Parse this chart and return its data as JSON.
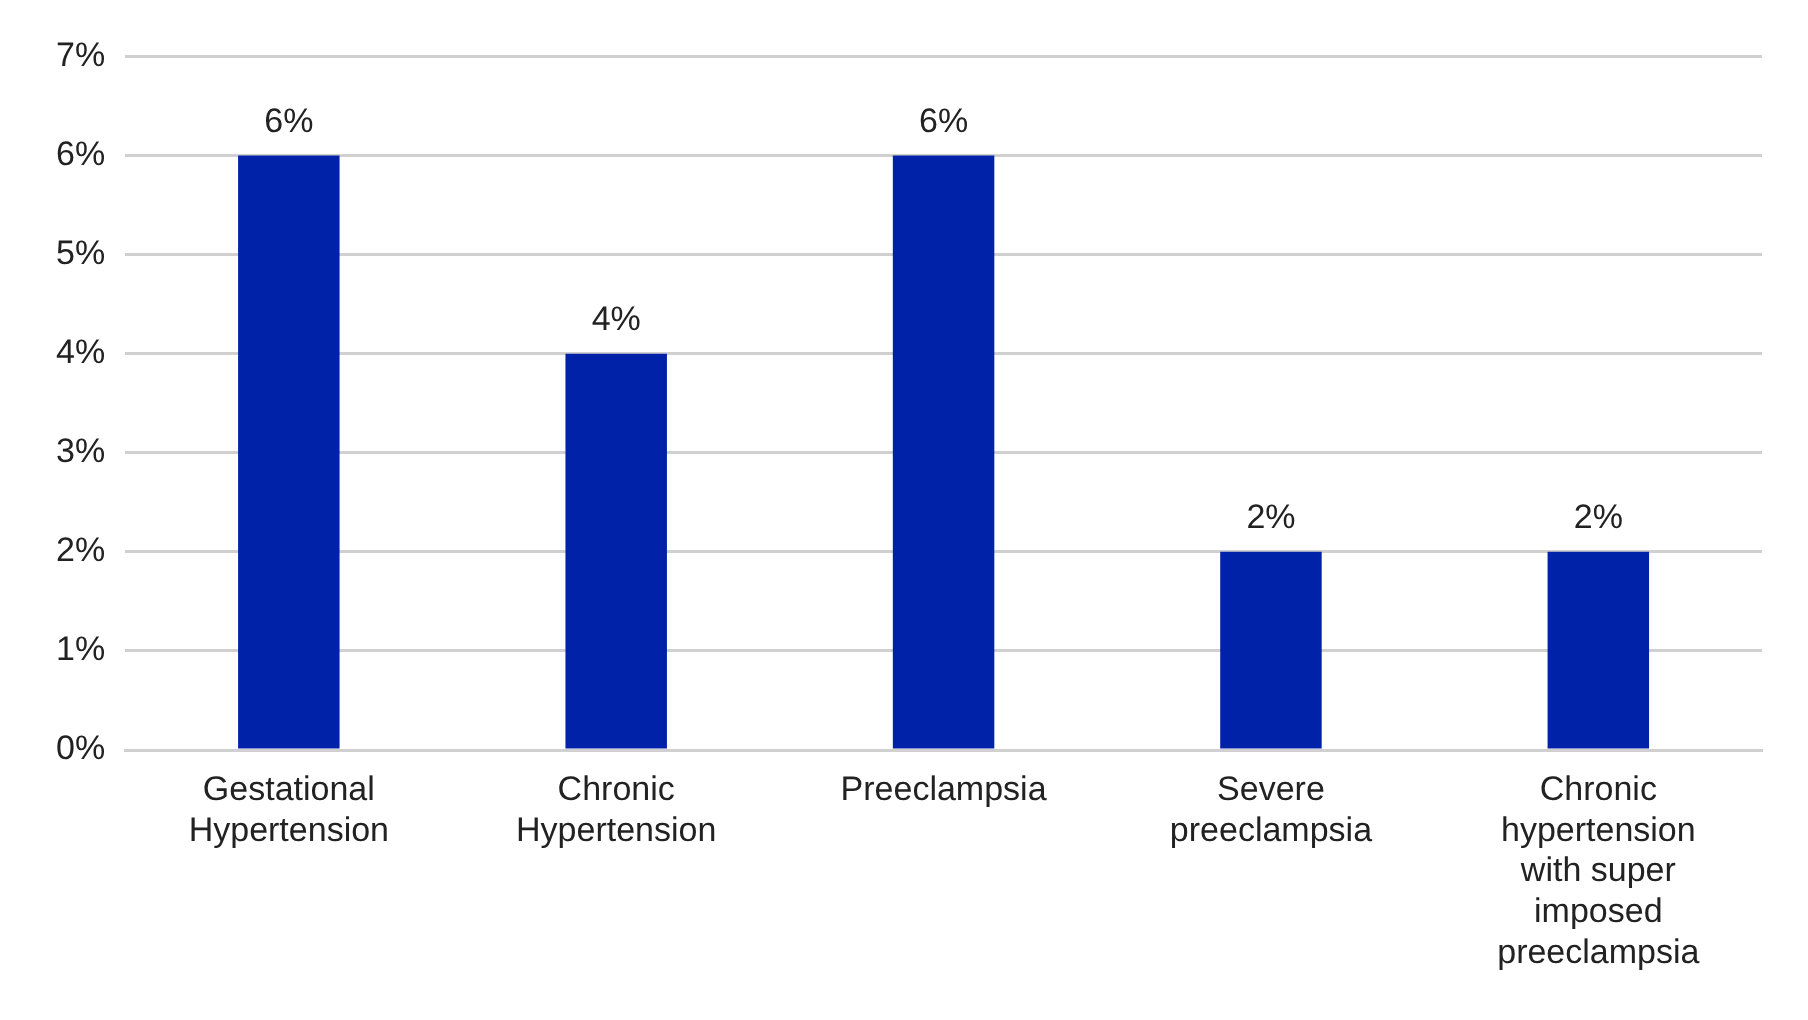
{
  "chart_data": {
    "type": "bar",
    "categories": [
      "Gestational Hypertension",
      "Chronic Hypertension",
      "Preeclampsia",
      "Severe preeclampsia",
      "Chronic hypertension with super imposed preeclampsia"
    ],
    "values": [
      6,
      4,
      6,
      2,
      2
    ],
    "value_labels": [
      "6%",
      "4%",
      "6%",
      "2%",
      "2%"
    ],
    "color": "#0022a8",
    "ylim": [
      0,
      7
    ],
    "yticks": [
      {
        "value": 0,
        "label": "0%"
      },
      {
        "value": 1,
        "label": "1%"
      },
      {
        "value": 2,
        "label": "2%"
      },
      {
        "value": 3,
        "label": "3%"
      },
      {
        "value": 4,
        "label": "4%"
      },
      {
        "value": 5,
        "label": "5%"
      },
      {
        "value": 6,
        "label": "6%"
      },
      {
        "value": 7,
        "label": "7%"
      }
    ],
    "grid": "y",
    "legend": false
  }
}
